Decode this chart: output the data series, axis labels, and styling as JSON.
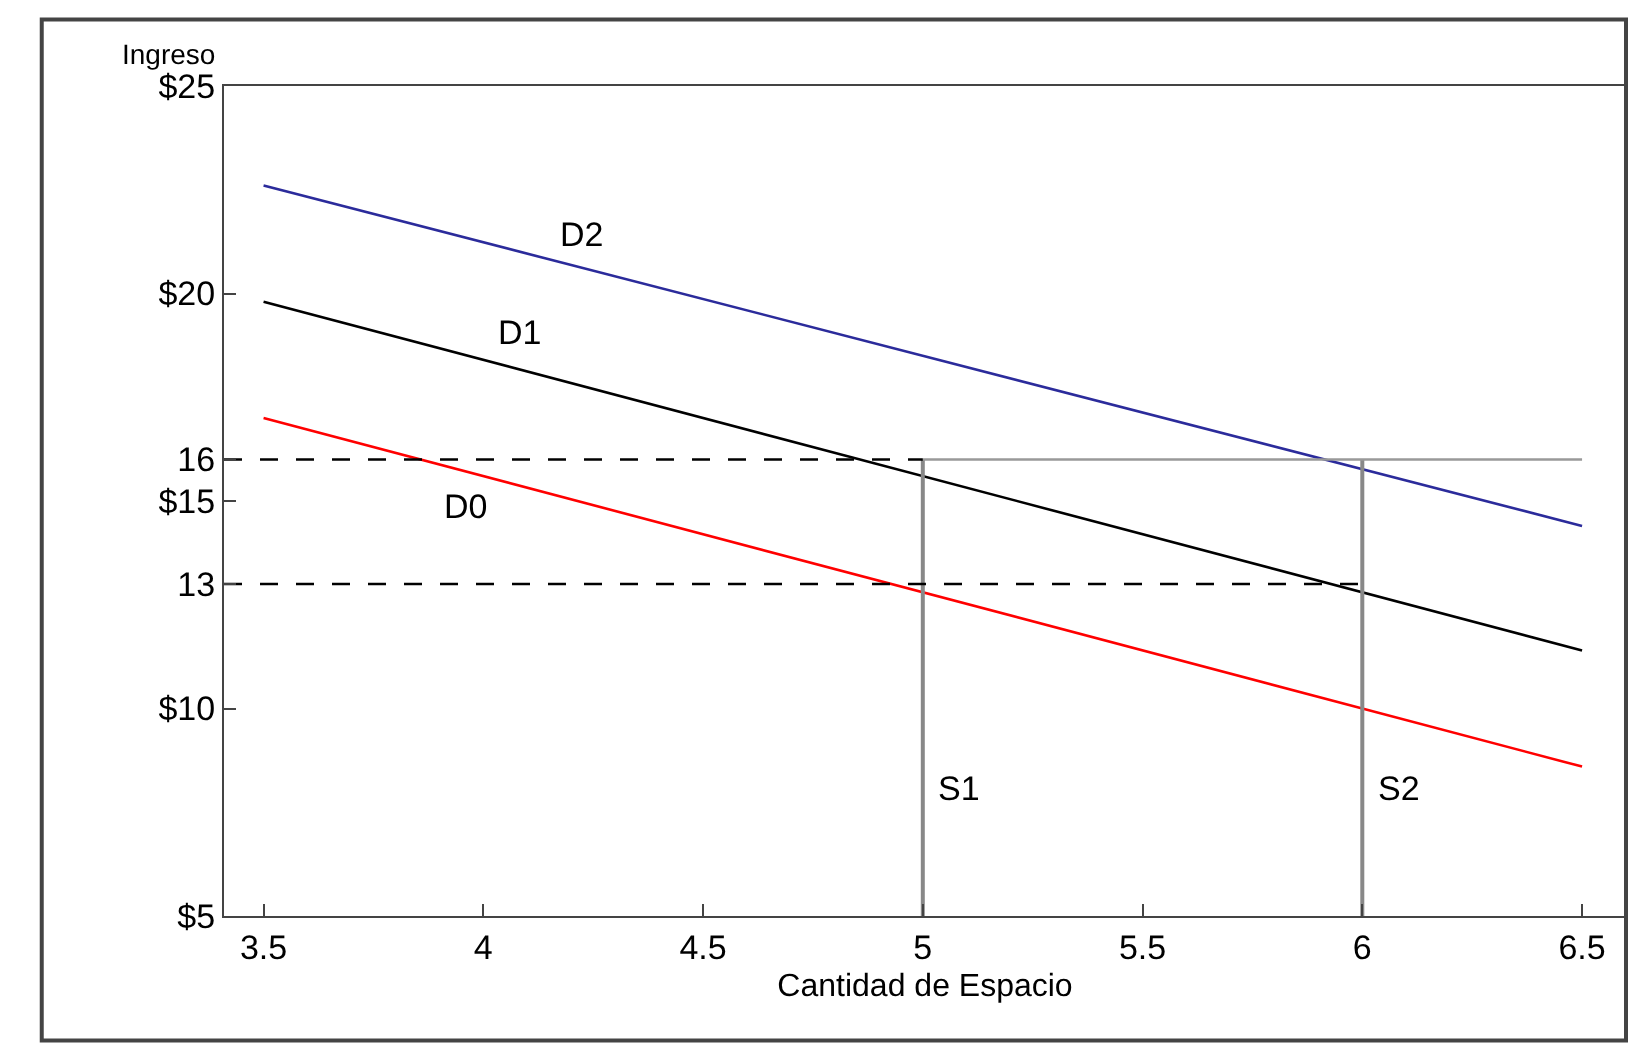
{
  "chart_data": {
    "type": "line",
    "xlabel": "Cantidad de Espacio",
    "ylabel": "Ingreso",
    "xlim": [
      3.41,
      6.6
    ],
    "ylim": [
      5,
      25
    ],
    "xticks": [
      3.5,
      4,
      4.5,
      5,
      5.5,
      6,
      6.5
    ],
    "yticks": [
      {
        "value": 5,
        "label": "$5"
      },
      {
        "value": 10,
        "label": "$10"
      },
      13,
      {
        "value": 15,
        "label": "$15"
      },
      16,
      {
        "value": 20,
        "label": "$20"
      },
      {
        "value": 25,
        "label": "$25"
      }
    ],
    "legend": false,
    "marker": "none",
    "series": [
      {
        "name": "D2",
        "color": "#2b2b9b",
        "x": [
          3.5,
          6.5
        ],
        "values": [
          22.6,
          14.4
        ]
      },
      {
        "name": "D1",
        "color": "#000000",
        "x": [
          3.5,
          6.5
        ],
        "values": [
          19.8,
          11.4
        ]
      },
      {
        "name": "D0",
        "color": "#ff0000",
        "x": [
          3.5,
          6.5
        ],
        "values": [
          17.0,
          8.6
        ]
      },
      {
        "name": "S1",
        "color": "#888888",
        "x": [
          5,
          5
        ],
        "values": [
          5,
          16
        ]
      },
      {
        "name": "S2",
        "color": "#888888",
        "x": [
          6,
          6
        ],
        "values": [
          5,
          16
        ]
      },
      {
        "color": "#999999",
        "x": [
          5,
          6.5
        ],
        "values": [
          16,
          16
        ]
      },
      {
        "color": "#000000",
        "x": [
          3.41,
          5
        ],
        "values": [
          16,
          16
        ],
        "line_style": "dashed"
      },
      {
        "color": "#000000",
        "x": [
          3.41,
          6
        ],
        "values": [
          13,
          13
        ],
        "line_style": "dashed"
      }
    ]
  }
}
